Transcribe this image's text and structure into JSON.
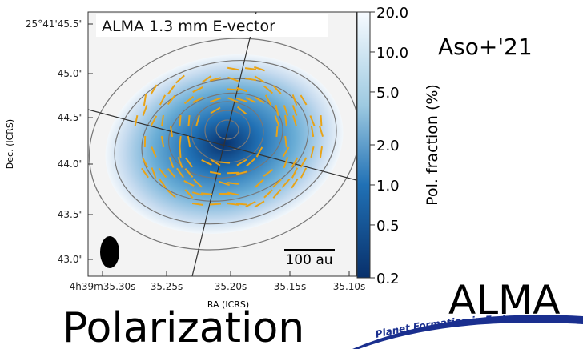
{
  "figure": {
    "title": "ALMA 1.3 mm E-vector",
    "x_label": "RA (ICRS)",
    "y_label": "Dec. (ICRS)",
    "x_ticks": [
      "4h39m35.30s",
      "35.25s",
      "35.20s",
      "35.15s",
      "35.10s"
    ],
    "y_ticks": [
      "25°41'45.5\"",
      "45.0\"",
      "44.5\"",
      "44.0\"",
      "43.5\"",
      "43.0\""
    ],
    "scale_bar": "100 au",
    "colorbar": {
      "label": "Pol. fraction (%)",
      "scale": "log",
      "lim": [
        0.2,
        20
      ],
      "ticks": [
        {
          "value": 20,
          "label": "20.0"
        },
        {
          "value": 10,
          "label": "10.0"
        },
        {
          "value": 5,
          "label": "5.0"
        },
        {
          "value": 2,
          "label": "2.0"
        },
        {
          "value": 1,
          "label": "1.0"
        },
        {
          "value": 0.5,
          "label": "0.5"
        },
        {
          "value": 0.2,
          "label": "0.2"
        }
      ]
    }
  },
  "citation": "Aso+'21",
  "heading": "ALMA",
  "subheading": "Polarization",
  "logo_text": "Planet Formation in Embedded"
}
